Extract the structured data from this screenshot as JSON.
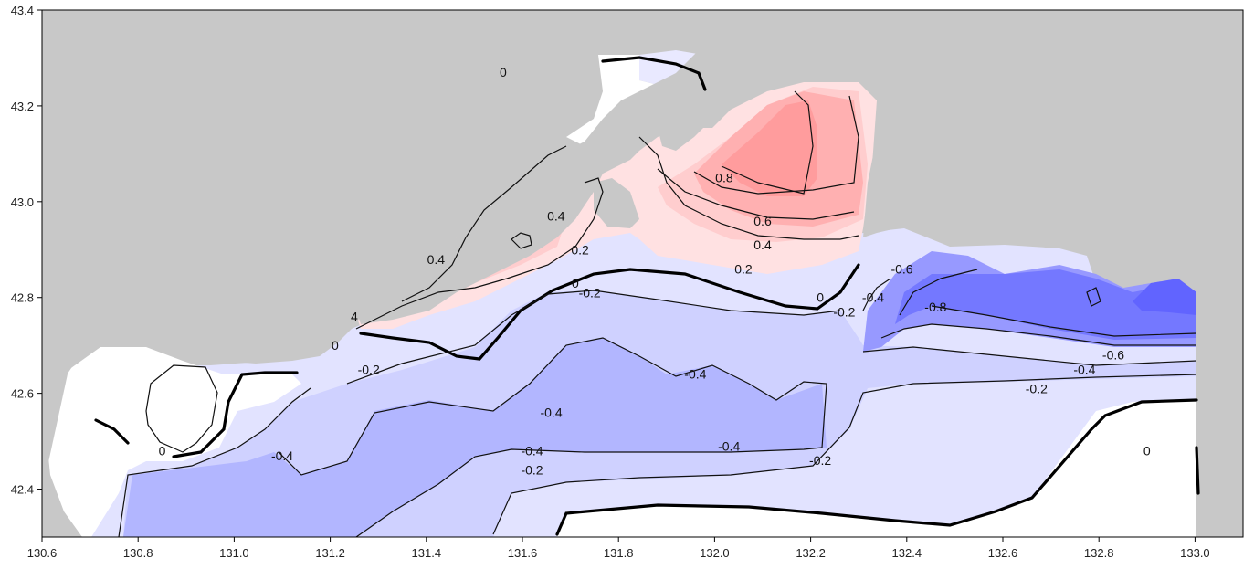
{
  "map": {
    "x_ticks": [
      "130.6",
      "130.8",
      "131.0",
      "131.2",
      "131.4",
      "131.6",
      "131.8",
      "132.0",
      "132.2",
      "132.4",
      "132.6",
      "132.8",
      "133.0"
    ],
    "y_ticks": [
      "43.4",
      "43.2",
      "43.0",
      "42.8",
      "42.6",
      "42.4"
    ],
    "lon_range": [
      130.6,
      133.1
    ],
    "lat_range": [
      42.3,
      43.4
    ],
    "contour_labels": [
      {
        "text": "0",
        "lon": 131.56,
        "lat": 43.27
      },
      {
        "text": "0.8",
        "lon": 132.02,
        "lat": 43.05
      },
      {
        "text": "0.6",
        "lon": 132.1,
        "lat": 42.96
      },
      {
        "text": "0.4",
        "lon": 132.1,
        "lat": 42.91
      },
      {
        "text": "0.2",
        "lon": 132.06,
        "lat": 42.86
      },
      {
        "text": "0.4",
        "lon": 131.67,
        "lat": 42.97
      },
      {
        "text": "0.4",
        "lon": 131.42,
        "lat": 42.88
      },
      {
        "text": "0.2",
        "lon": 131.72,
        "lat": 42.9
      },
      {
        "text": "0",
        "lon": 131.71,
        "lat": 42.83
      },
      {
        "text": "0",
        "lon": 132.22,
        "lat": 42.8
      },
      {
        "text": "-0.2",
        "lon": 131.74,
        "lat": 42.81
      },
      {
        "text": "-0.2",
        "lon": 132.27,
        "lat": 42.77
      },
      {
        "text": "-0.4",
        "lon": 132.33,
        "lat": 42.8
      },
      {
        "text": "-0.6",
        "lon": 132.39,
        "lat": 42.86
      },
      {
        "text": "-0.8",
        "lon": 132.46,
        "lat": 42.78
      },
      {
        "text": "-0.6",
        "lon": 132.83,
        "lat": 42.68
      },
      {
        "text": "-0.4",
        "lon": 132.77,
        "lat": 42.65
      },
      {
        "text": "-0.2",
        "lon": 132.67,
        "lat": 42.61
      },
      {
        "text": "-0.4",
        "lon": 131.96,
        "lat": 42.64
      },
      {
        "text": "-0.4",
        "lon": 131.66,
        "lat": 42.56
      },
      {
        "text": "-0.4",
        "lon": 132.03,
        "lat": 42.49
      },
      {
        "text": "-0.4",
        "lon": 131.62,
        "lat": 42.48
      },
      {
        "text": "-0.4",
        "lon": 131.1,
        "lat": 42.47
      },
      {
        "text": "-0.2",
        "lon": 131.62,
        "lat": 42.44
      },
      {
        "text": "-0.2",
        "lon": 132.22,
        "lat": 42.46
      },
      {
        "text": "-0.2",
        "lon": 131.28,
        "lat": 42.65
      },
      {
        "text": "0",
        "lon": 131.21,
        "lat": 42.7
      },
      {
        "text": "0",
        "lon": 130.85,
        "lat": 42.48
      },
      {
        "text": "0",
        "lon": 132.9,
        "lat": 42.48
      },
      {
        "text": "4",
        "lon": 131.25,
        "lat": 42.76
      }
    ],
    "colors": {
      "land": "#c8c8c8",
      "neg_0_2": "#e2e3ff",
      "neg_0_4": "#cfd1ff",
      "neg_0_6": "#b2b6ff",
      "neg_0_8": "#9799ff",
      "neg_1_0": "#7478ff",
      "neg_1_2": "#6164ff",
      "pos_0_2": "#ffe1e2",
      "pos_0_4": "#ffcdce",
      "pos_0_6": "#ffb0b1",
      "pos_0_8": "#ff9c9d"
    }
  }
}
